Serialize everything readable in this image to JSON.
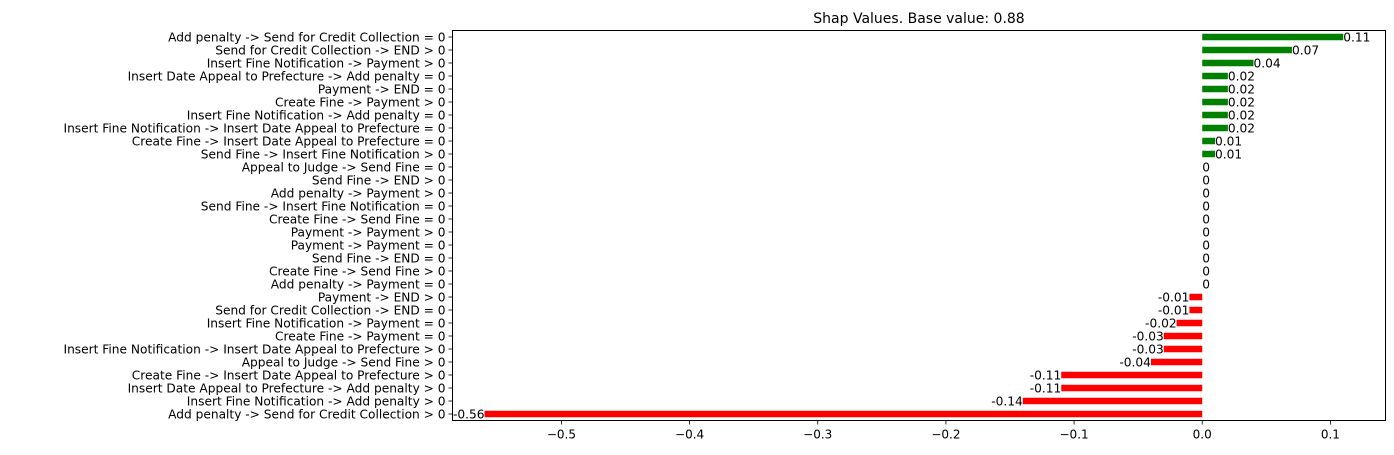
{
  "chart_data": {
    "type": "bar",
    "orientation": "horizontal",
    "title": "Shap Values. Base value: 0.88",
    "xlabel": "",
    "ylabel": "",
    "xlim": [
      -0.585,
      0.143
    ],
    "xticks": [
      -0.5,
      -0.4,
      -0.3,
      -0.2,
      -0.1,
      0.0,
      0.1
    ],
    "xtick_labels": [
      "−0.5",
      "−0.4",
      "−0.3",
      "−0.2",
      "−0.1",
      "0.0",
      "0.1"
    ],
    "grid": false,
    "colors": {
      "positive": "#008000",
      "negative": "#ff0000"
    },
    "categories": [
      "Add penalty -> Send for Credit Collection = 0",
      "Send for Credit Collection -> END > 0",
      "Insert Fine Notification -> Payment > 0",
      "Insert Date Appeal to Prefecture -> Add penalty = 0",
      "Payment -> END = 0",
      "Create Fine -> Payment > 0",
      "Insert Fine Notification -> Add penalty = 0",
      "Insert Fine Notification -> Insert Date Appeal to Prefecture = 0",
      "Create Fine -> Insert Date Appeal to Prefecture = 0",
      "Send Fine -> Insert Fine Notification > 0",
      "Appeal to Judge -> Send Fine = 0",
      "Send Fine -> END > 0",
      "Add penalty -> Payment > 0",
      "Send Fine -> Insert Fine Notification = 0",
      "Create Fine -> Send Fine = 0",
      "Payment -> Payment > 0",
      "Payment -> Payment = 0",
      "Send Fine -> END = 0",
      "Create Fine -> Send Fine > 0",
      "Add penalty -> Payment = 0",
      "Payment -> END > 0",
      "Send for Credit Collection -> END = 0",
      "Insert Fine Notification -> Payment = 0",
      "Create Fine -> Payment = 0",
      "Insert Fine Notification -> Insert Date Appeal to Prefecture > 0",
      "Appeal to Judge -> Send Fine > 0",
      "Create Fine -> Insert Date Appeal to Prefecture > 0",
      "Insert Date Appeal to Prefecture -> Add penalty > 0",
      "Insert Fine Notification -> Add penalty > 0",
      "Add penalty -> Send for Credit Collection > 0"
    ],
    "values": [
      0.11,
      0.07,
      0.04,
      0.02,
      0.02,
      0.02,
      0.02,
      0.02,
      0.01,
      0.01,
      0,
      0,
      0,
      0,
      0,
      0,
      0,
      0,
      0,
      0,
      -0.01,
      -0.01,
      -0.02,
      -0.03,
      -0.03,
      -0.04,
      -0.11,
      -0.11,
      -0.14,
      -0.56
    ],
    "data_labels": [
      "0.11",
      "0.07",
      "0.04",
      "0.02",
      "0.02",
      "0.02",
      "0.02",
      "0.02",
      "0.01",
      "0.01",
      "0",
      "0",
      "0",
      "0",
      "0",
      "0",
      "0",
      "0",
      "0",
      "0",
      "-0.01",
      "-0.01",
      "-0.02",
      "-0.03",
      "-0.03",
      "-0.04",
      "-0.11",
      "-0.11",
      "-0.14",
      "-0.56"
    ]
  }
}
